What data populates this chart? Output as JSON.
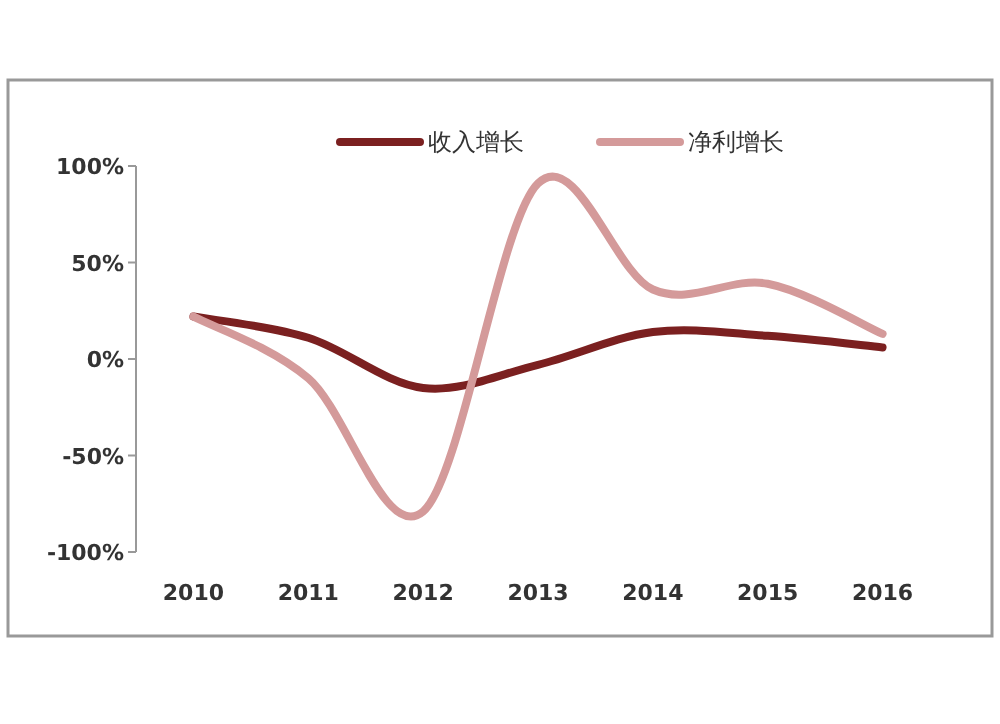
{
  "chart_data": {
    "type": "line",
    "categories": [
      "2010",
      "2011",
      "2012",
      "2013",
      "2014",
      "2015",
      "2016"
    ],
    "series": [
      {
        "name": "收入增长",
        "color": "#7b2020",
        "values": [
          22,
          11,
          -15,
          -3,
          14,
          12,
          6
        ]
      },
      {
        "name": "净利增长",
        "color": "#d49a9a",
        "values": [
          22,
          -10,
          -79,
          91,
          36,
          39,
          13
        ]
      }
    ],
    "ylim": [
      -100,
      100
    ],
    "yticks": [
      {
        "value": -100,
        "label": "-100%"
      },
      {
        "value": -50,
        "label": "-50%"
      },
      {
        "value": 0,
        "label": "0%"
      },
      {
        "value": 50,
        "label": "50%"
      },
      {
        "value": 100,
        "label": "100%"
      }
    ],
    "legend": "top",
    "marker": "none",
    "line_style": "solid"
  }
}
